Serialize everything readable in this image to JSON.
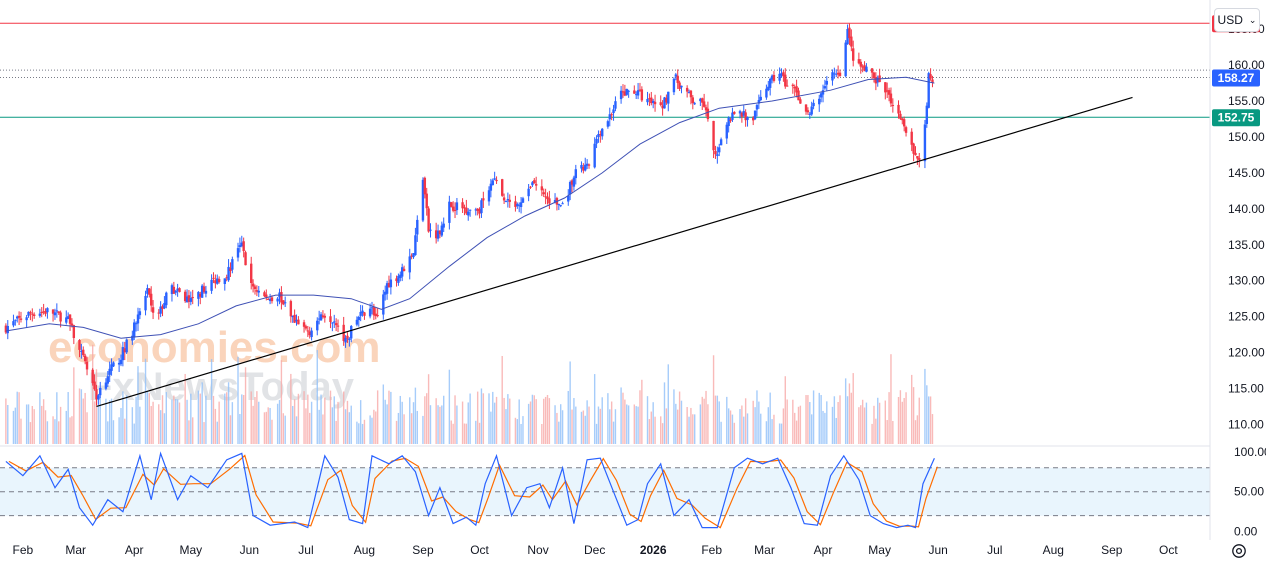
{
  "header": {
    "currency": "USD"
  },
  "watermark": {
    "line1": "economies.com",
    "line2": "FxNewsToday"
  },
  "chart_data": [
    {
      "type": "candlestick",
      "yaxis_ticks": [
        110,
        115,
        120,
        125,
        130,
        135,
        140,
        145,
        150,
        155,
        160,
        165
      ],
      "yaxis_tick_labels": [
        "110.00",
        "115.00",
        "120.00",
        "125.00",
        "130.00",
        "135.00",
        "140.00",
        "145.00",
        "150.00",
        "155.00",
        "160.00",
        "165.00"
      ],
      "ylim": [
        107,
        168.5
      ],
      "xlim": [
        "2025-01-22",
        "2026-10-22"
      ],
      "x_ticks": [
        {
          "label": "Feb",
          "date": "2025-02-01"
        },
        {
          "label": "Mar",
          "date": "2025-03-01"
        },
        {
          "label": "Apr",
          "date": "2025-04-01"
        },
        {
          "label": "May",
          "date": "2025-05-01"
        },
        {
          "label": "Jun",
          "date": "2025-06-01"
        },
        {
          "label": "Jul",
          "date": "2025-07-01"
        },
        {
          "label": "Aug",
          "date": "2025-08-01"
        },
        {
          "label": "Sep",
          "date": "2025-09-01"
        },
        {
          "label": "Oct",
          "date": "2025-10-01"
        },
        {
          "label": "Nov",
          "date": "2025-11-01"
        },
        {
          "label": "Dec",
          "date": "2025-12-01"
        },
        {
          "label": "2026",
          "date": "2026-01-01"
        },
        {
          "label": "Feb",
          "date": "2026-02-01"
        },
        {
          "label": "Mar",
          "date": "2026-03-01"
        },
        {
          "label": "Apr",
          "date": "2026-04-01"
        },
        {
          "label": "May",
          "date": "2026-05-01"
        },
        {
          "label": "Jun",
          "date": "2026-06-01"
        },
        {
          "label": "Jul",
          "date": "2026-07-01"
        },
        {
          "label": "Aug",
          "date": "2026-08-01"
        },
        {
          "label": "Sep",
          "date": "2026-09-01"
        },
        {
          "label": "Oct",
          "date": "2026-10-01"
        }
      ],
      "price_path": [
        [
          "2025-01-23",
          123.5
        ],
        [
          "2025-02-05",
          125.5
        ],
        [
          "2025-02-15",
          125.8
        ],
        [
          "2025-02-25",
          124.5
        ],
        [
          "2025-03-05",
          119
        ],
        [
          "2025-03-12",
          114
        ],
        [
          "2025-03-18",
          117
        ],
        [
          "2025-03-25",
          119.5
        ],
        [
          "2025-04-01",
          123.5
        ],
        [
          "2025-04-08",
          128.5
        ],
        [
          "2025-04-12",
          124
        ],
        [
          "2025-04-20",
          129
        ],
        [
          "2025-05-01",
          127
        ],
        [
          "2025-05-10",
          129.5
        ],
        [
          "2025-05-20",
          131
        ],
        [
          "2025-05-28",
          135
        ],
        [
          "2025-06-02",
          129.5
        ],
        [
          "2025-06-10",
          127.5
        ],
        [
          "2025-06-17",
          128
        ],
        [
          "2025-06-25",
          124
        ],
        [
          "2025-07-03",
          123
        ],
        [
          "2025-07-10",
          125.5
        ],
        [
          "2025-07-17",
          124.5
        ],
        [
          "2025-07-22",
          121.5
        ],
        [
          "2025-07-28",
          124.5
        ],
        [
          "2025-08-04",
          126.5
        ],
        [
          "2025-08-08",
          124.5
        ],
        [
          "2025-08-13",
          129.5
        ],
        [
          "2025-08-20",
          131
        ],
        [
          "2025-08-27",
          134
        ],
        [
          "2025-09-01",
          144.5
        ],
        [
          "2025-09-04",
          137
        ],
        [
          "2025-09-09",
          136.5
        ],
        [
          "2025-09-15",
          140.5
        ],
        [
          "2025-09-24",
          140
        ],
        [
          "2025-10-01",
          140
        ],
        [
          "2025-10-08",
          144.5
        ],
        [
          "2025-10-14",
          141
        ],
        [
          "2025-10-22",
          140
        ],
        [
          "2025-10-29",
          144
        ],
        [
          "2025-11-07",
          141
        ],
        [
          "2025-11-14",
          140.5
        ],
        [
          "2025-11-21",
          145
        ],
        [
          "2025-11-28",
          146
        ],
        [
          "2025-12-03",
          150.5
        ],
        [
          "2025-12-08",
          152.5
        ],
        [
          "2025-12-15",
          156
        ],
        [
          "2025-12-22",
          156.5
        ],
        [
          "2025-12-29",
          155
        ],
        [
          "2026-01-05",
          154
        ],
        [
          "2026-01-13",
          158
        ],
        [
          "2026-01-22",
          155
        ],
        [
          "2026-01-28",
          154.5
        ],
        [
          "2026-02-03",
          147
        ],
        [
          "2026-02-07",
          151
        ],
        [
          "2026-02-14",
          154
        ],
        [
          "2026-02-22",
          152
        ],
        [
          "2026-03-02",
          157
        ],
        [
          "2026-03-09",
          159
        ],
        [
          "2026-03-13",
          157
        ],
        [
          "2026-03-18",
          156
        ],
        [
          "2026-03-24",
          153
        ],
        [
          "2026-03-30",
          155.5
        ],
        [
          "2026-04-05",
          159
        ],
        [
          "2026-04-10",
          158
        ],
        [
          "2026-04-14",
          164.5
        ],
        [
          "2026-04-18",
          160
        ],
        [
          "2026-04-25",
          159
        ],
        [
          "2026-05-02",
          157
        ],
        [
          "2026-05-08",
          155
        ],
        [
          "2026-05-14",
          152
        ],
        [
          "2026-05-20",
          147
        ],
        [
          "2026-05-24",
          148
        ],
        [
          "2026-05-27",
          158.5
        ],
        [
          "2026-05-30",
          157.5
        ]
      ],
      "moving_average": [
        [
          "2025-01-23",
          123
        ],
        [
          "2025-02-15",
          124
        ],
        [
          "2025-03-05",
          123.5
        ],
        [
          "2025-03-25",
          122
        ],
        [
          "2025-04-15",
          122.5
        ],
        [
          "2025-05-05",
          124
        ],
        [
          "2025-05-25",
          126.5
        ],
        [
          "2025-06-15",
          128
        ],
        [
          "2025-07-05",
          128
        ],
        [
          "2025-07-25",
          127.5
        ],
        [
          "2025-08-10",
          126
        ],
        [
          "2025-08-25",
          127.5
        ],
        [
          "2025-09-15",
          132
        ],
        [
          "2025-10-05",
          136
        ],
        [
          "2025-10-25",
          139
        ],
        [
          "2025-11-15",
          141.5
        ],
        [
          "2025-12-05",
          145
        ],
        [
          "2025-12-25",
          149
        ],
        [
          "2026-01-15",
          152
        ],
        [
          "2026-02-05",
          154
        ],
        [
          "2026-03-05",
          155
        ],
        [
          "2026-04-05",
          156.5
        ],
        [
          "2026-04-25",
          158
        ],
        [
          "2026-05-15",
          158.3
        ],
        [
          "2026-05-30",
          157.5
        ]
      ],
      "trendline": {
        "from": [
          "2025-03-12",
          112.5
        ],
        "to": [
          "2026-09-12",
          155.5
        ]
      },
      "horizontal_levels": [
        {
          "value": 165.82,
          "label": "165.82",
          "color": "#f23645"
        },
        {
          "value": 152.75,
          "label": "152.75",
          "color": "#089981"
        }
      ],
      "current_price": {
        "value": 158.27,
        "label": "158.27",
        "color": "#2962ff"
      },
      "colors": {
        "up": "#2962ff",
        "down": "#f23645",
        "ma": "#3f51b5",
        "trend": "#000000"
      },
      "volume": {
        "visible": true
      }
    },
    {
      "type": "line",
      "name": "stochastic",
      "yaxis_ticks": [
        0,
        50,
        100
      ],
      "yaxis_tick_labels": [
        "0.00",
        "50.00",
        "100.00"
      ],
      "ylim": [
        -8,
        106
      ],
      "bands": [
        20,
        50,
        80
      ],
      "band_fill": "#e3f2fd",
      "k_color": "#2962ff",
      "d_color": "#ff6d00",
      "k_values": [
        [
          "2025-01-23",
          88
        ],
        [
          "2025-02-01",
          70
        ],
        [
          "2025-02-10",
          95
        ],
        [
          "2025-02-18",
          55
        ],
        [
          "2025-02-25",
          78
        ],
        [
          "2025-03-03",
          30
        ],
        [
          "2025-03-10",
          8
        ],
        [
          "2025-03-18",
          40
        ],
        [
          "2025-03-26",
          25
        ],
        [
          "2025-04-04",
          95
        ],
        [
          "2025-04-10",
          40
        ],
        [
          "2025-04-15",
          98
        ],
        [
          "2025-04-24",
          40
        ],
        [
          "2025-05-01",
          70
        ],
        [
          "2025-05-10",
          55
        ],
        [
          "2025-05-20",
          90
        ],
        [
          "2025-05-28",
          98
        ],
        [
          "2025-06-03",
          20
        ],
        [
          "2025-06-12",
          8
        ],
        [
          "2025-06-25",
          12
        ],
        [
          "2025-07-02",
          5
        ],
        [
          "2025-07-11",
          95
        ],
        [
          "2025-07-18",
          68
        ],
        [
          "2025-07-24",
          15
        ],
        [
          "2025-07-31",
          10
        ],
        [
          "2025-08-05",
          95
        ],
        [
          "2025-08-14",
          85
        ],
        [
          "2025-08-21",
          95
        ],
        [
          "2025-08-28",
          75
        ],
        [
          "2025-09-04",
          20
        ],
        [
          "2025-09-10",
          55
        ],
        [
          "2025-09-17",
          10
        ],
        [
          "2025-09-24",
          18
        ],
        [
          "2025-09-29",
          8
        ],
        [
          "2025-10-04",
          60
        ],
        [
          "2025-10-10",
          95
        ],
        [
          "2025-10-18",
          20
        ],
        [
          "2025-10-26",
          55
        ],
        [
          "2025-11-02",
          60
        ],
        [
          "2025-11-07",
          30
        ],
        [
          "2025-11-14",
          80
        ],
        [
          "2025-11-20",
          10
        ],
        [
          "2025-11-27",
          90
        ],
        [
          "2025-12-04",
          92
        ],
        [
          "2025-12-11",
          50
        ],
        [
          "2025-12-18",
          8
        ],
        [
          "2025-12-24",
          15
        ],
        [
          "2025-12-29",
          60
        ],
        [
          "2026-01-05",
          85
        ],
        [
          "2026-01-12",
          20
        ],
        [
          "2026-01-20",
          40
        ],
        [
          "2026-01-27",
          5
        ],
        [
          "2026-02-04",
          5
        ],
        [
          "2026-02-13",
          80
        ],
        [
          "2026-02-20",
          92
        ],
        [
          "2026-02-28",
          85
        ],
        [
          "2026-03-08",
          92
        ],
        [
          "2026-03-15",
          55
        ],
        [
          "2026-03-22",
          10
        ],
        [
          "2026-03-29",
          8
        ],
        [
          "2026-04-05",
          70
        ],
        [
          "2026-04-12",
          95
        ],
        [
          "2026-04-20",
          65
        ],
        [
          "2026-04-26",
          20
        ],
        [
          "2026-05-03",
          10
        ],
        [
          "2026-05-10",
          5
        ],
        [
          "2026-05-16",
          8
        ],
        [
          "2026-05-20",
          5
        ],
        [
          "2026-05-24",
          60
        ],
        [
          "2026-05-30",
          92
        ]
      ]
    }
  ]
}
